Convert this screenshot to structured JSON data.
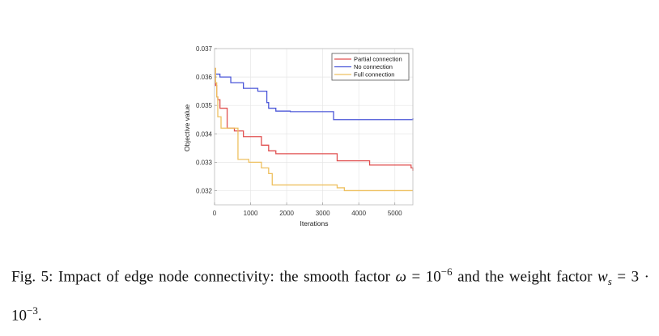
{
  "chart_data": {
    "type": "line",
    "title": "",
    "xlabel": "Iterations",
    "ylabel": "Objective value",
    "xlim": [
      0,
      5500
    ],
    "ylim": [
      0.0315,
      0.037
    ],
    "xticks": [
      0,
      1000,
      2000,
      3000,
      4000,
      5000
    ],
    "xtick_labels": [
      "0",
      "1000",
      "2000",
      "3000",
      "4000",
      "5000"
    ],
    "yticks": [
      0.032,
      0.033,
      0.034,
      0.035,
      0.036,
      0.037
    ],
    "ytick_labels": [
      "0.032",
      "0.033",
      "0.034",
      "0.035",
      "0.036",
      "0.037"
    ],
    "grid": true,
    "legend_position": "top-right",
    "step": true,
    "series": [
      {
        "name": "Partial connection",
        "color": "#e05050",
        "x": [
          0,
          30,
          60,
          90,
          150,
          350,
          550,
          800,
          1300,
          1500,
          1700,
          3400,
          4300,
          5450,
          5500
        ],
        "y": [
          0.0363,
          0.0357,
          0.0353,
          0.0352,
          0.0349,
          0.0342,
          0.0341,
          0.0339,
          0.0336,
          0.0334,
          0.0333,
          0.03305,
          0.0329,
          0.0328,
          0.0327
        ]
      },
      {
        "name": "No connection",
        "color": "#4a56d8",
        "x": [
          0,
          150,
          450,
          800,
          1200,
          1450,
          1500,
          1700,
          2100,
          3300,
          5500
        ],
        "y": [
          0.0361,
          0.036,
          0.0358,
          0.0356,
          0.0355,
          0.0351,
          0.0349,
          0.0348,
          0.03478,
          0.0345,
          0.03455
        ]
      },
      {
        "name": "Full connection",
        "color": "#eec060",
        "x": [
          0,
          30,
          60,
          90,
          180,
          500,
          650,
          950,
          1300,
          1500,
          1600,
          3400,
          3600,
          5500
        ],
        "y": [
          0.0363,
          0.0358,
          0.0353,
          0.0346,
          0.0342,
          0.0342,
          0.0331,
          0.033,
          0.0328,
          0.0326,
          0.0322,
          0.0321,
          0.032,
          0.032
        ]
      }
    ]
  },
  "caption": {
    "prefix": "Fig. 5: Impact of edge node connectivity: the smooth factor ",
    "omega_symbol": "ω",
    "equals": " = ",
    "omega_base": "10",
    "omega_exp": "−6",
    "middle": " and the weight factor ",
    "w_symbol": "w",
    "w_sub": "s",
    "w_value": " = 3 · 10",
    "w_exp": "−3",
    "end": "."
  }
}
